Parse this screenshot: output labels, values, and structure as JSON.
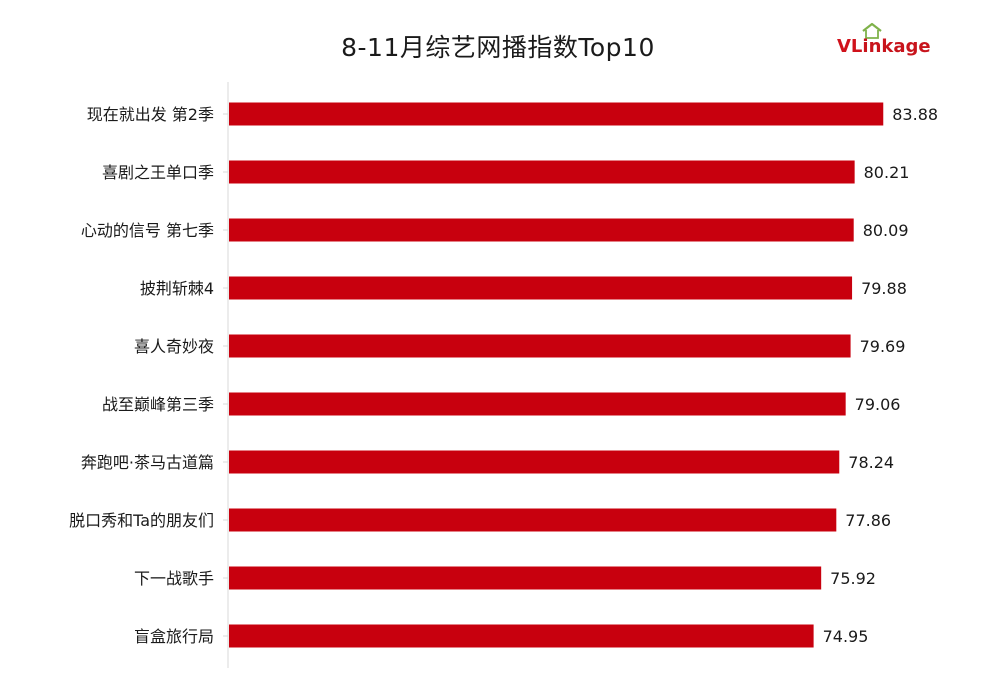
{
  "logo": {
    "brand_v": "VL",
    "brand_rest": "inkage"
  },
  "colors": {
    "bar": "#c8000e",
    "axis": "#d9d9d9",
    "brand": "#d0121b"
  },
  "chart_data": {
    "type": "bar",
    "orientation": "horizontal",
    "title": "8-11月综艺网播指数Top10",
    "xlabel": "",
    "ylabel": "",
    "grid": false,
    "xlim": [
      0,
      90
    ],
    "categories": [
      "现在就出发 第2季",
      "喜剧之王单口季",
      "心动的信号 第七季",
      "披荆斩棘4",
      "喜人奇妙夜",
      "战至巅峰第三季",
      "奔跑吧·茶马古道篇",
      "脱口秀和Ta的朋友们",
      "下一战歌手",
      "盲盒旅行局"
    ],
    "values": [
      83.88,
      80.21,
      80.09,
      79.88,
      79.69,
      79.06,
      78.24,
      77.86,
      75.92,
      74.95
    ],
    "value_labels": [
      "83.88",
      "80.21",
      "80.09",
      "79.88",
      "79.69",
      "79.06",
      "78.24",
      "77.86",
      "75.92",
      "74.95"
    ]
  }
}
